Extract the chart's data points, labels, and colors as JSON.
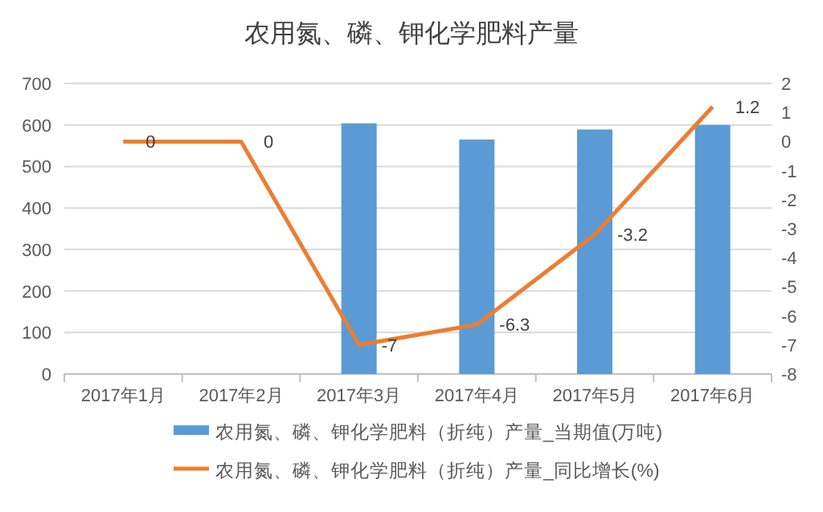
{
  "chart_data": {
    "type": "bar",
    "title": "农用氮、磷、钾化学肥料产量",
    "categories": [
      "2017年1月",
      "2017年2月",
      "2017年3月",
      "2017年4月",
      "2017年5月",
      "2017年6月"
    ],
    "series": [
      {
        "name": "农用氮、磷、钾化学肥料（折纯）产量_当期值(万吨)",
        "color": "#5b9bd5",
        "values": [
          null,
          null,
          604,
          565,
          589,
          600
        ]
      },
      {
        "name": "农用氮、磷、钾化学肥料（折纯）产量_同比增长(%)",
        "type": "line",
        "axis": "y2",
        "color": "#ed7d31",
        "values": [
          0,
          0,
          -7,
          -6.3,
          -3.2,
          1.2
        ],
        "value_labels": [
          "0",
          "0",
          "-7",
          "-6.3",
          "-3.2",
          "1.2"
        ]
      }
    ],
    "ylim": [
      0,
      700
    ],
    "yticks": [
      0,
      100,
      200,
      300,
      400,
      500,
      600,
      700
    ],
    "y2lim": [
      -8,
      2
    ],
    "y2ticks": [
      -8,
      -7,
      -6,
      -5,
      -4,
      -3,
      -2,
      -1,
      0,
      1,
      2
    ],
    "grid": "y",
    "legend": "bottom"
  }
}
